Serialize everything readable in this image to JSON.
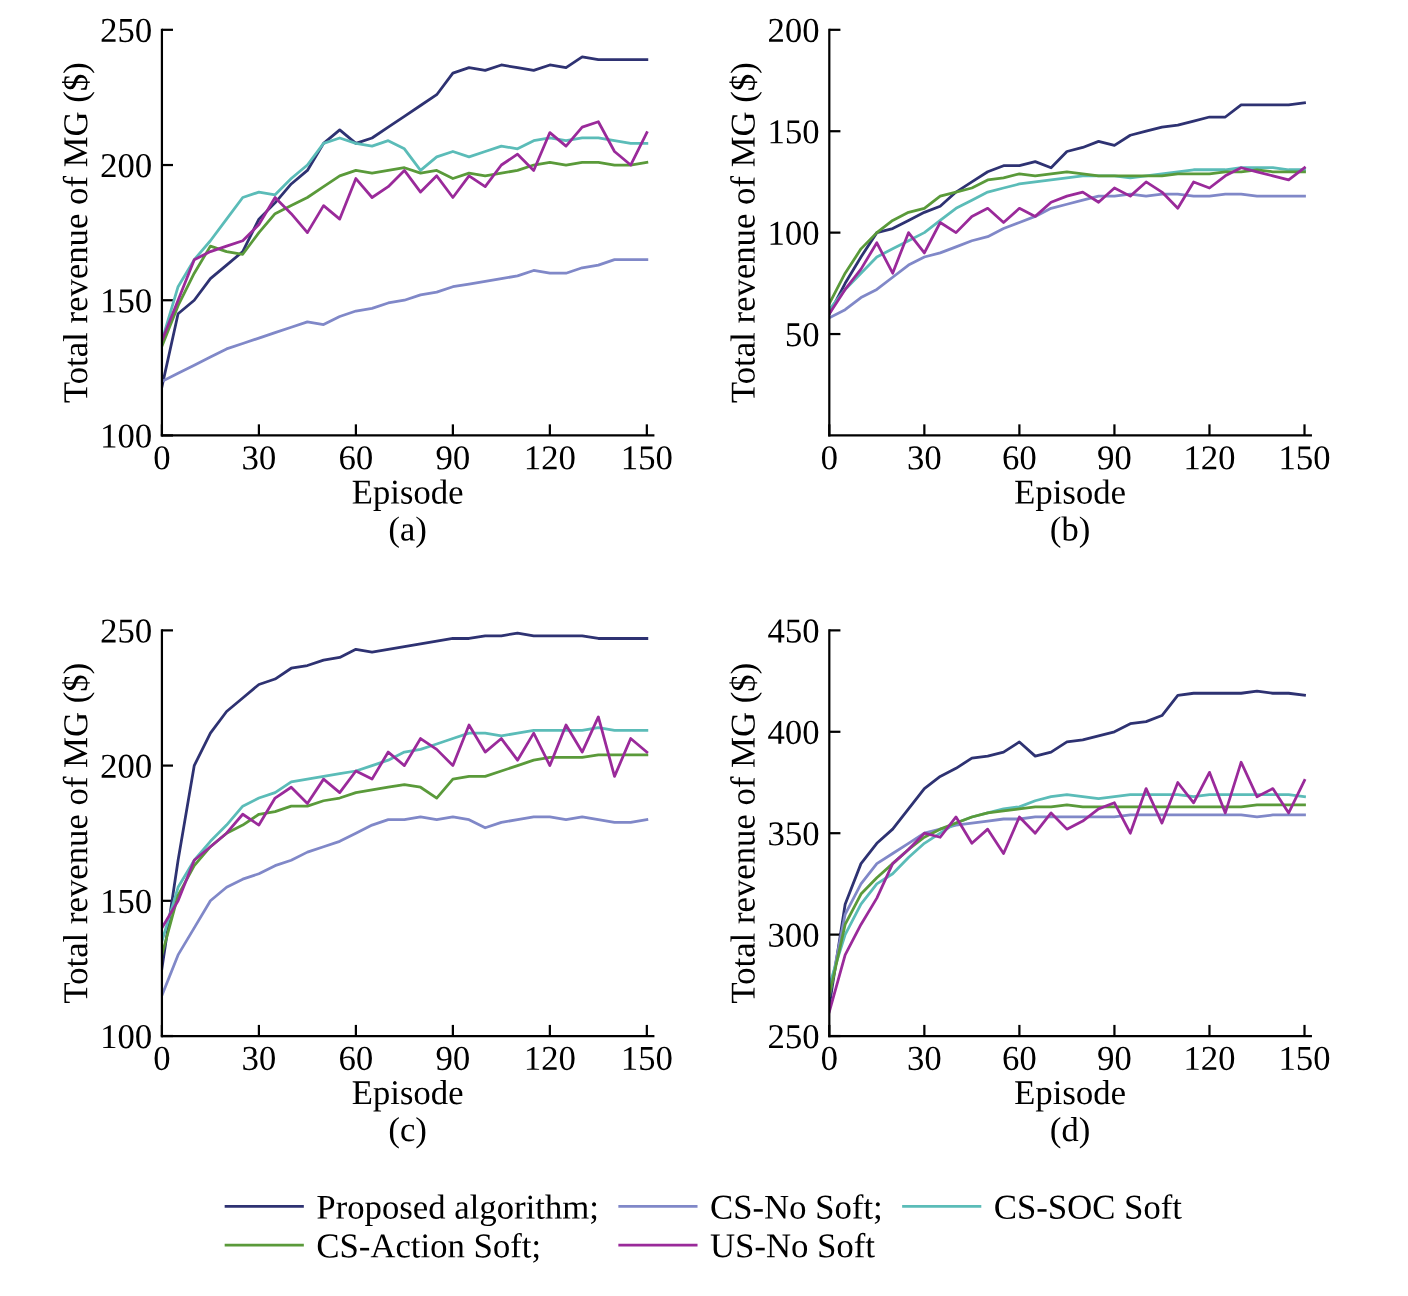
{
  "chart_data": [
    {
      "type": "line",
      "title": "(a)",
      "xlabel": "Episode",
      "ylabel": "Total revenue of MG ($)",
      "xlim": [
        0,
        152
      ],
      "xticks": [
        0,
        30,
        60,
        90,
        120,
        150
      ],
      "ylim": [
        100,
        250
      ],
      "yticks": [
        100,
        150,
        200,
        250
      ],
      "grid": false,
      "legend": "bottom",
      "x": [
        0,
        5,
        10,
        15,
        20,
        25,
        30,
        35,
        40,
        45,
        50,
        55,
        60,
        65,
        70,
        75,
        80,
        85,
        90,
        95,
        100,
        105,
        110,
        115,
        120,
        125,
        130,
        135,
        140,
        145,
        150
      ],
      "series": [
        {
          "name": "Proposed algorithm;",
          "color": "#2e3272",
          "values": [
            118,
            145,
            150,
            158,
            163,
            168,
            180,
            186,
            193,
            198,
            208,
            213,
            208,
            210,
            214,
            218,
            222,
            226,
            234,
            236,
            235,
            237,
            236,
            235,
            237,
            236,
            240,
            239,
            239,
            239,
            239
          ]
        },
        {
          "name": "CS-No Soft;",
          "color": "#8088c8",
          "values": [
            120,
            123,
            126,
            129,
            132,
            134,
            136,
            138,
            140,
            142,
            141,
            144,
            146,
            147,
            149,
            150,
            152,
            153,
            155,
            156,
            157,
            158,
            159,
            161,
            160,
            160,
            162,
            163,
            165,
            165,
            165
          ]
        },
        {
          "name": "CS-SOC Soft",
          "color": "#5bbcb8",
          "values": [
            135,
            155,
            165,
            172,
            180,
            188,
            190,
            189,
            195,
            200,
            208,
            210,
            208,
            207,
            209,
            206,
            198,
            203,
            205,
            203,
            205,
            207,
            206,
            209,
            210,
            209,
            210,
            210,
            209,
            208,
            208
          ]
        },
        {
          "name": "CS-Action Soft;",
          "color": "#5a9a3a",
          "values": [
            133,
            148,
            160,
            170,
            168,
            167,
            175,
            182,
            185,
            188,
            192,
            196,
            198,
            197,
            198,
            199,
            197,
            198,
            195,
            197,
            196,
            197,
            198,
            200,
            201,
            200,
            201,
            201,
            200,
            200,
            201
          ]
        },
        {
          "name": "US-No Soft",
          "color": "#9a2a9a",
          "values": [
            135,
            150,
            165,
            168,
            170,
            172,
            178,
            188,
            182,
            175,
            185,
            180,
            195,
            188,
            192,
            198,
            190,
            196,
            188,
            196,
            192,
            200,
            204,
            198,
            212,
            207,
            214,
            216,
            205,
            200,
            212
          ]
        }
      ]
    },
    {
      "type": "line",
      "title": "(b)",
      "xlabel": "Episode",
      "ylabel": "Total revenue of MG ($)",
      "xlim": [
        0,
        152
      ],
      "xticks": [
        0,
        30,
        60,
        90,
        120,
        150
      ],
      "ylim": [
        0,
        200
      ],
      "yticks": [
        50,
        100,
        150,
        200
      ],
      "grid": false,
      "x": [
        0,
        5,
        10,
        15,
        20,
        25,
        30,
        35,
        40,
        45,
        50,
        55,
        60,
        65,
        70,
        75,
        80,
        85,
        90,
        95,
        100,
        105,
        110,
        115,
        120,
        125,
        130,
        135,
        140,
        145,
        150
      ],
      "series": [
        {
          "color": "#2e3272",
          "values": [
            60,
            75,
            88,
            100,
            102,
            106,
            110,
            113,
            120,
            125,
            130,
            133,
            133,
            135,
            132,
            140,
            142,
            145,
            143,
            148,
            150,
            152,
            153,
            155,
            157,
            157,
            163,
            163,
            163,
            163,
            164
          ]
        },
        {
          "color": "#8088c8",
          "values": [
            58,
            62,
            68,
            72,
            78,
            84,
            88,
            90,
            93,
            96,
            98,
            102,
            105,
            108,
            112,
            114,
            116,
            118,
            118,
            119,
            118,
            119,
            119,
            118,
            118,
            119,
            119,
            118,
            118,
            118,
            118
          ]
        },
        {
          "color": "#5bbcb8",
          "values": [
            62,
            72,
            80,
            88,
            92,
            96,
            100,
            106,
            112,
            116,
            120,
            122,
            124,
            125,
            126,
            127,
            128,
            128,
            128,
            127,
            128,
            129,
            130,
            131,
            131,
            131,
            132,
            132,
            132,
            131,
            131
          ]
        },
        {
          "color": "#5a9a3a",
          "values": [
            65,
            80,
            92,
            100,
            106,
            110,
            112,
            118,
            120,
            122,
            126,
            127,
            129,
            128,
            129,
            130,
            129,
            128,
            128,
            128,
            128,
            128,
            129,
            129,
            129,
            130,
            130,
            131,
            130,
            130,
            130
          ]
        },
        {
          "color": "#9a2a9a",
          "values": [
            60,
            72,
            82,
            95,
            80,
            100,
            90,
            105,
            100,
            108,
            112,
            105,
            112,
            108,
            115,
            118,
            120,
            115,
            122,
            118,
            125,
            120,
            112,
            125,
            122,
            128,
            132,
            130,
            128,
            126,
            132
          ]
        }
      ]
    },
    {
      "type": "line",
      "title": "(c)",
      "xlabel": "Episode",
      "ylabel": "Total revenue of MG ($)",
      "xlim": [
        0,
        152
      ],
      "xticks": [
        0,
        30,
        60,
        90,
        120,
        150
      ],
      "ylim": [
        100,
        250
      ],
      "yticks": [
        100,
        150,
        200,
        250
      ],
      "grid": false,
      "x": [
        0,
        5,
        10,
        15,
        20,
        25,
        30,
        35,
        40,
        45,
        50,
        55,
        60,
        65,
        70,
        75,
        80,
        85,
        90,
        95,
        100,
        105,
        110,
        115,
        120,
        125,
        130,
        135,
        140,
        145,
        150
      ],
      "series": [
        {
          "color": "#2e3272",
          "values": [
            125,
            165,
            200,
            212,
            220,
            225,
            230,
            232,
            236,
            237,
            239,
            240,
            243,
            242,
            243,
            244,
            245,
            246,
            247,
            247,
            248,
            248,
            249,
            248,
            248,
            248,
            248,
            247,
            247,
            247,
            247
          ]
        },
        {
          "color": "#8088c8",
          "values": [
            115,
            130,
            140,
            150,
            155,
            158,
            160,
            163,
            165,
            168,
            170,
            172,
            175,
            178,
            180,
            180,
            181,
            180,
            181,
            180,
            177,
            179,
            180,
            181,
            181,
            180,
            181,
            180,
            179,
            179,
            180
          ]
        },
        {
          "color": "#5bbcb8",
          "values": [
            135,
            155,
            165,
            172,
            178,
            185,
            188,
            190,
            194,
            195,
            196,
            197,
            198,
            200,
            202,
            205,
            206,
            208,
            210,
            212,
            212,
            211,
            212,
            213,
            213,
            213,
            213,
            214,
            213,
            213,
            213
          ]
        },
        {
          "color": "#5a9a3a",
          "values": [
            130,
            152,
            163,
            170,
            175,
            178,
            182,
            183,
            185,
            185,
            187,
            188,
            190,
            191,
            192,
            193,
            192,
            188,
            195,
            196,
            196,
            198,
            200,
            202,
            203,
            203,
            203,
            204,
            204,
            204,
            204
          ]
        },
        {
          "color": "#9a2a9a",
          "values": [
            140,
            150,
            165,
            170,
            175,
            182,
            178,
            188,
            192,
            186,
            195,
            190,
            198,
            195,
            205,
            200,
            210,
            206,
            200,
            215,
            205,
            210,
            202,
            212,
            200,
            215,
            205,
            218,
            196,
            210,
            205
          ]
        }
      ]
    },
    {
      "type": "line",
      "title": "(d)",
      "xlabel": "Episode",
      "ylabel": "Total revenue of MG ($)",
      "xlim": [
        0,
        152
      ],
      "xticks": [
        0,
        30,
        60,
        90,
        120,
        150
      ],
      "ylim": [
        250,
        450
      ],
      "yticks": [
        250,
        300,
        350,
        400,
        450
      ],
      "grid": false,
      "x": [
        0,
        5,
        10,
        15,
        20,
        25,
        30,
        35,
        40,
        45,
        50,
        55,
        60,
        65,
        70,
        75,
        80,
        85,
        90,
        95,
        100,
        105,
        110,
        115,
        120,
        125,
        130,
        135,
        140,
        145,
        150
      ],
      "series": [
        {
          "color": "#2e3272",
          "values": [
            265,
            315,
            335,
            345,
            352,
            362,
            372,
            378,
            382,
            387,
            388,
            390,
            395,
            388,
            390,
            395,
            396,
            398,
            400,
            404,
            405,
            408,
            418,
            419,
            419,
            419,
            419,
            420,
            419,
            419,
            418
          ]
        },
        {
          "color": "#8088c8",
          "values": [
            270,
            310,
            325,
            335,
            340,
            345,
            350,
            352,
            354,
            355,
            356,
            357,
            357,
            358,
            358,
            358,
            358,
            358,
            358,
            359,
            359,
            359,
            359,
            359,
            359,
            359,
            359,
            358,
            359,
            359,
            359
          ]
        },
        {
          "color": "#5bbcb8",
          "values": [
            275,
            300,
            315,
            325,
            330,
            338,
            345,
            350,
            355,
            358,
            360,
            362,
            363,
            366,
            368,
            369,
            368,
            367,
            368,
            369,
            369,
            369,
            369,
            368,
            369,
            369,
            369,
            369,
            369,
            369,
            368
          ]
        },
        {
          "color": "#5a9a3a",
          "values": [
            270,
            305,
            320,
            328,
            335,
            342,
            348,
            352,
            355,
            358,
            360,
            361,
            362,
            363,
            363,
            364,
            363,
            363,
            363,
            363,
            363,
            363,
            363,
            363,
            363,
            363,
            363,
            364,
            364,
            364,
            364
          ]
        },
        {
          "color": "#9a2a9a",
          "values": [
            262,
            290,
            305,
            318,
            335,
            342,
            350,
            348,
            358,
            345,
            352,
            340,
            358,
            350,
            360,
            352,
            356,
            362,
            365,
            350,
            372,
            355,
            375,
            365,
            380,
            360,
            385,
            368,
            372,
            360,
            376
          ]
        }
      ]
    }
  ]
}
